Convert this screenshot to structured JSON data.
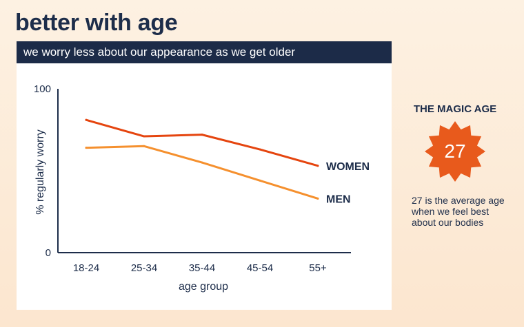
{
  "title": "better with age",
  "subtitle": "we worry less about our appearance as we get older",
  "colors": {
    "women": "#e5450f",
    "men": "#f5902e",
    "navy": "#1c2b48",
    "badge": "#e85a1c"
  },
  "side": {
    "heading": "THE MAGIC AGE",
    "number": "27",
    "description": "27 is the average age when we feel best about our bodies"
  },
  "chart_data": {
    "type": "line",
    "xlabel": "age group",
    "ylabel": "% regularly worry",
    "ylim": [
      0,
      100
    ],
    "yticks": [
      "0",
      "100"
    ],
    "categories": [
      "18-24",
      "25-34",
      "35-44",
      "45-54",
      "55+"
    ],
    "series": [
      {
        "name": "WOMEN",
        "values": [
          81,
          71,
          72,
          63,
          53
        ]
      },
      {
        "name": "MEN",
        "values": [
          64,
          65,
          55,
          44,
          33
        ]
      }
    ],
    "grid": false,
    "legend": "direct labels at line ends"
  }
}
